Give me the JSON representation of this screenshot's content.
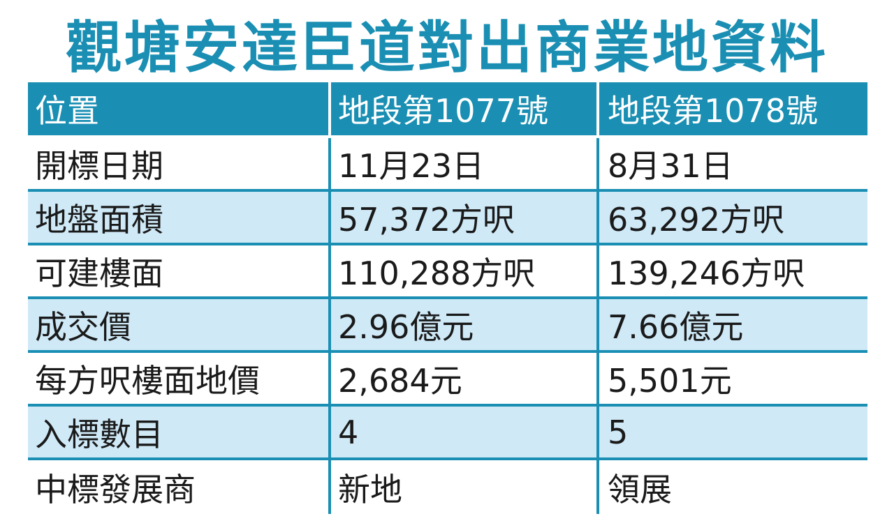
{
  "title": "觀塘安達臣道對出商業地資料",
  "header": {
    "label": "位置",
    "lot1": "地段第1077號",
    "lot2": "地段第1078號"
  },
  "rows": [
    {
      "label": "開標日期",
      "lot1": "11月23日",
      "lot2": "8月31日"
    },
    {
      "label": "地盤面積",
      "lot1": "57,372方呎",
      "lot2": "63,292方呎"
    },
    {
      "label": "可建樓面",
      "lot1": "110,288方呎",
      "lot2": "139,246方呎"
    },
    {
      "label": "成交價",
      "lot1": "2.96億元",
      "lot2": "7.66億元"
    },
    {
      "label": "每方呎樓面地價",
      "lot1": "2,684元",
      "lot2": "5,501元"
    },
    {
      "label": "入標數目",
      "lot1": "4",
      "lot2": "5"
    },
    {
      "label": "中標發展商",
      "lot1": "新地",
      "lot2": "領展"
    }
  ],
  "colors": {
    "accent": "#1a8fb3",
    "row_alt": "#cfe9f7",
    "header_text": "#ffffff"
  }
}
